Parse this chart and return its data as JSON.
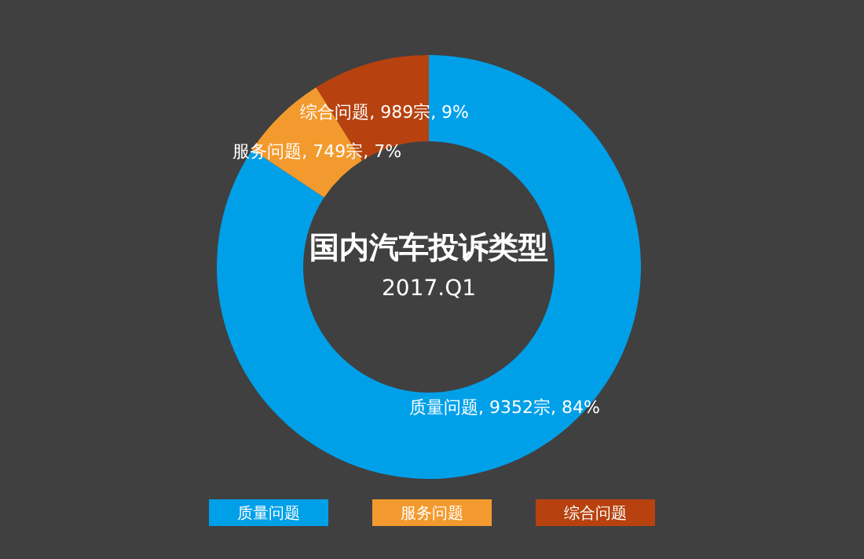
{
  "chart_data": {
    "type": "donut",
    "title": "国内汽车投诉类型",
    "subtitle": "2017.Q1",
    "categories": [
      "质量问题",
      "服务问题",
      "综合问题"
    ],
    "values": [
      9352,
      749,
      989
    ],
    "value_labels": [
      "质量问题, 9352宗, 84%",
      "服务问题, 749宗, 7%",
      "综合问题, 989宗, 9%"
    ],
    "colors": [
      "#00a0e9",
      "#f39a2e",
      "#b7420f"
    ],
    "legend": "bottom"
  }
}
